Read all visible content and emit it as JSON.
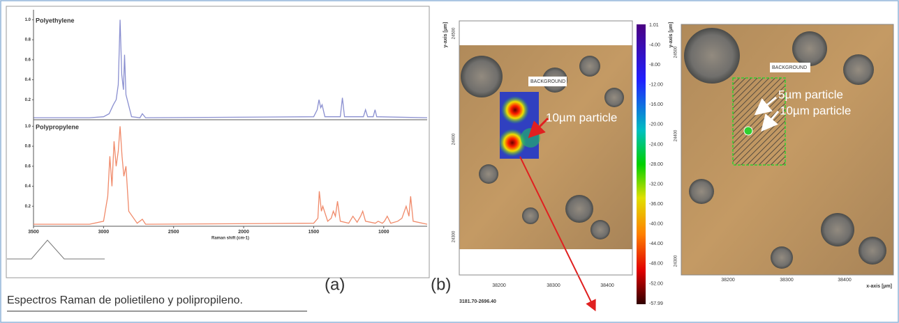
{
  "chart_data": [
    {
      "type": "line",
      "title": "Polyethylene",
      "color": "#8a8fd0",
      "x": [
        3500,
        3100,
        3000,
        2960,
        2930,
        2910,
        2895,
        2882,
        2870,
        2858,
        2850,
        2840,
        2800,
        2740,
        2723,
        2700,
        1500,
        1475,
        1462,
        1450,
        1440,
        1420,
        1310,
        1295,
        1280,
        1145,
        1130,
        1115,
        1075,
        1062,
        1050,
        690
      ],
      "values": [
        0.02,
        0.02,
        0.03,
        0.06,
        0.15,
        0.2,
        0.35,
        1.0,
        0.45,
        0.3,
        0.65,
        0.25,
        0.03,
        0.02,
        0.06,
        0.02,
        0.03,
        0.1,
        0.2,
        0.12,
        0.15,
        0.03,
        0.03,
        0.22,
        0.03,
        0.03,
        0.1,
        0.03,
        0.03,
        0.1,
        0.03,
        0.02
      ],
      "xlim": [
        3500,
        690
      ],
      "ylim": [
        0,
        1.1
      ],
      "yticks": [
        0.2,
        0.4,
        0.6,
        0.8,
        {
          "value": 1,
          "label": "1.0"
        }
      ]
    },
    {
      "type": "line",
      "title": "Polypropylene",
      "color": "#f08a6a",
      "xlabel": "Raman shift (cm-1)",
      "x": [
        3500,
        3100,
        3000,
        2970,
        2955,
        2940,
        2925,
        2910,
        2895,
        2882,
        2868,
        2855,
        2840,
        2820,
        2760,
        2723,
        2700,
        1500,
        1470,
        1460,
        1445,
        1435,
        1400,
        1375,
        1360,
        1345,
        1330,
        1310,
        1250,
        1220,
        1190,
        1165,
        1150,
        1130,
        1060,
        1040,
        1010,
        995,
        975,
        950,
        900,
        870,
        840,
        820,
        808,
        790,
        690
      ],
      "values": [
        0.02,
        0.02,
        0.05,
        0.3,
        0.7,
        0.4,
        0.85,
        0.6,
        0.75,
        1.0,
        0.7,
        0.5,
        0.6,
        0.15,
        0.03,
        0.07,
        0.02,
        0.03,
        0.08,
        0.35,
        0.15,
        0.2,
        0.05,
        0.08,
        0.15,
        0.1,
        0.25,
        0.05,
        0.03,
        0.1,
        0.04,
        0.1,
        0.15,
        0.05,
        0.03,
        0.05,
        0.03,
        0.05,
        0.1,
        0.03,
        0.05,
        0.08,
        0.2,
        0.1,
        0.3,
        0.05,
        0.02
      ],
      "xlim": [
        3500,
        690
      ],
      "ylim": [
        0,
        1.1
      ],
      "xticks": [
        3500,
        3000,
        2500,
        2000,
        1500,
        1000
      ],
      "yticks": [
        0.2,
        0.4,
        0.6,
        0.8,
        {
          "value": 1,
          "label": "1.0"
        }
      ]
    }
  ],
  "caption": "Espectros Raman de polietileno y polipropileno.",
  "panel_labels": [
    "(a)",
    "(b)"
  ],
  "map": {
    "annotations": [
      "BACKGROUND",
      "10µm particle"
    ],
    "y_axis_label": "y-axis [µm]",
    "yticks": [
      "24500",
      "24400",
      "24300"
    ],
    "xticks": [
      "38200",
      "38300",
      "38400"
    ],
    "range_label": "3181.70-2696.40"
  },
  "colorbar": {
    "ticks": [
      "1.01",
      "-4.00",
      "-8.00",
      "-12.00",
      "-16.00",
      "-20.00",
      "-24.00",
      "-28.00",
      "-32.00",
      "-36.00",
      "-40.00",
      "-44.00",
      "-48.00",
      "-52.00",
      "-57.99"
    ]
  },
  "image2": {
    "annotations": [
      "BACKGROUND",
      "5µm particle",
      "10µm particle"
    ],
    "y_axis_label": "y-axis [µm]",
    "yticks": [
      "24500",
      "24400",
      "24300"
    ],
    "xticks": [
      "38200",
      "38300",
      "38400"
    ],
    "x_axis_label": "x-axis [µm]"
  }
}
